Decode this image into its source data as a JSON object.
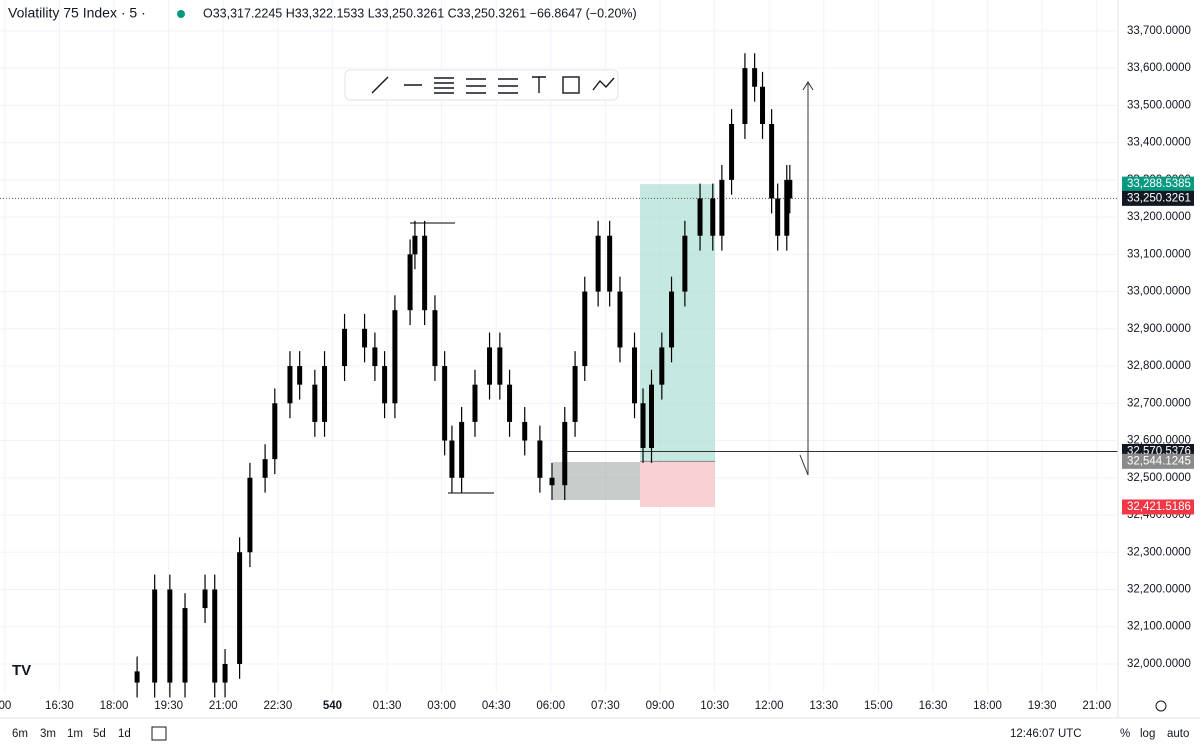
{
  "chart_data": {
    "type": "candlestick",
    "title": "Volatility 75 Index · 5 ·",
    "ohlc_legend": "O33,317.2245 H33,322.1533 L33,250.3261 C33,250.3261 −66.8647 (−0.20%)",
    "color": "#000000",
    "grid": true,
    "x": [
      218,
      247,
      272,
      297,
      330,
      346,
      363,
      387,
      404,
      429,
      445,
      470,
      486,
      511,
      527,
      560,
      593,
      610,
      626,
      643,
      668,
      676,
      692,
      709,
      725,
      737,
      753,
      775,
      799,
      816,
      832,
      857,
      882,
      902,
      923,
      940,
      956,
      978,
      997,
      1014,
      1038,
      1052,
      1066,
      1083,
      1099,
      1121,
      1146,
      1167,
      1182,
      1198,
      1220,
      1236,
      1249,
      1264,
      1274,
      1289,
      1294
    ],
    "open": [
      31980,
      31950,
      32200,
      31950,
      32150,
      32200,
      31950,
      32000,
      32300,
      32500,
      32550,
      32700,
      32800,
      32750,
      32650,
      32800,
      32900,
      32850,
      32800,
      32700,
      32950,
      33100,
      33150,
      32950,
      32800,
      32600,
      32500,
      32650,
      32750,
      32850,
      32750,
      32650,
      32600,
      32500,
      32480,
      32650,
      32800,
      33000,
      33150,
      33000,
      32850,
      32700,
      32580,
      32750,
      32850,
      33000,
      33150,
      33250,
      33150,
      33300,
      33450,
      33600,
      33550,
      33450,
      33250,
      33150,
      33300
    ],
    "high": [
      32020,
      32240,
      32240,
      32190,
      32240,
      32240,
      32040,
      32340,
      32540,
      32590,
      32740,
      32840,
      32840,
      32790,
      32840,
      32940,
      32940,
      32890,
      32840,
      32990,
      33140,
      33190,
      33190,
      32990,
      32840,
      32640,
      32690,
      32790,
      32890,
      32890,
      32790,
      32690,
      32640,
      32540,
      32690,
      32840,
      33040,
      33190,
      33190,
      33040,
      32890,
      32740,
      32790,
      32890,
      33040,
      33190,
      33290,
      33290,
      33340,
      33490,
      33640,
      33640,
      33590,
      33490,
      33290,
      33340,
      33340
    ],
    "low": [
      31910,
      31910,
      31910,
      31910,
      32110,
      31910,
      31910,
      31960,
      32260,
      32460,
      32510,
      32660,
      32710,
      32610,
      32610,
      32760,
      32810,
      32760,
      32660,
      32660,
      32910,
      33060,
      32910,
      32760,
      32560,
      32460,
      32460,
      32610,
      32710,
      32710,
      32610,
      32560,
      32460,
      32440,
      32440,
      32610,
      32760,
      32960,
      32960,
      32810,
      32660,
      32540,
      32540,
      32710,
      32810,
      32960,
      33110,
      33110,
      33110,
      33260,
      33410,
      33510,
      33410,
      33210,
      33110,
      33110,
      33210
    ],
    "close": [
      31950,
      32200,
      31950,
      32150,
      32200,
      31950,
      32000,
      32300,
      32500,
      32550,
      32700,
      32800,
      32750,
      32650,
      32800,
      32900,
      32850,
      32800,
      32700,
      32950,
      33100,
      33150,
      32950,
      32800,
      32600,
      32500,
      32650,
      32750,
      32850,
      32750,
      32650,
      32600,
      32500,
      32480,
      32650,
      32800,
      33000,
      33150,
      33000,
      32850,
      32700,
      32580,
      32750,
      32850,
      33000,
      33150,
      33250,
      33150,
      33300,
      33450,
      33600,
      33550,
      33450,
      33250,
      33150,
      33300,
      33250
    ],
    "xlim": [
      -8,
      1835
    ],
    "xticks": [
      {
        "value": 0,
        "label": "00"
      },
      {
        "value": 90,
        "label": "16:30"
      },
      {
        "value": 180,
        "label": "18:00"
      },
      {
        "value": 270,
        "label": "19:30"
      },
      {
        "value": 360,
        "label": "21:00"
      },
      {
        "value": 450,
        "label": "22:30"
      },
      540,
      {
        "value": 630,
        "label": "01:30"
      },
      {
        "value": 720,
        "label": "03:00"
      },
      {
        "value": 810,
        "label": "04:30"
      },
      {
        "value": 900,
        "label": "06:00"
      },
      {
        "value": 990,
        "label": "07:30"
      },
      {
        "value": 1080,
        "label": "09:00"
      },
      {
        "value": 1170,
        "label": "10:30"
      },
      {
        "value": 1260,
        "label": "12:00"
      },
      {
        "value": 1350,
        "label": "13:30"
      },
      {
        "value": 1440,
        "label": "15:00"
      },
      {
        "value": 1530,
        "label": "16:30"
      },
      {
        "value": 1620,
        "label": "18:00"
      },
      {
        "value": 1710,
        "label": "19:30"
      },
      {
        "value": 1800,
        "label": "21:00"
      }
    ],
    "ylim": [
      31922,
      33783
    ],
    "yticks": [
      {
        "value": 32000,
        "label": "32,000.0000"
      },
      {
        "value": 32100,
        "label": "32,100.0000"
      },
      {
        "value": 32200,
        "label": "32,200.0000"
      },
      {
        "value": 32300,
        "label": "32,300.0000"
      },
      {
        "value": 32400,
        "label": "32,400.0000"
      },
      {
        "value": 32500,
        "label": "32,500.0000"
      },
      {
        "value": 32600,
        "label": "32,600.0000"
      },
      {
        "value": 32700,
        "label": "32,700.0000"
      },
      {
        "value": 32800,
        "label": "32,800.0000"
      },
      {
        "value": 32900,
        "label": "32,900.0000"
      },
      {
        "value": 33000,
        "label": "33,000.0000"
      },
      {
        "value": 33100,
        "label": "33,100.0000"
      },
      {
        "value": 33200,
        "label": "33,200.0000"
      },
      {
        "value": 33300,
        "label": "33,300.0000"
      },
      {
        "value": 33400,
        "label": "33,400.0000"
      },
      {
        "value": 33500,
        "label": "33,500.0000"
      },
      {
        "value": 33600,
        "label": "33,600.0000"
      },
      {
        "value": 33700,
        "label": "33,700.0000"
      }
    ],
    "price_labels": [
      {
        "value": 33288.5385,
        "label": "33,288.5385",
        "color": "#089981"
      },
      {
        "value": 33250.3261,
        "label": "33,250.3261",
        "color": "#131722"
      },
      {
        "value": 32570.5376,
        "label": "32,570.5376",
        "color": "#131722"
      },
      {
        "value": 32544.1245,
        "label": "32,544.1245",
        "color": "#8a8a8a"
      },
      {
        "value": 32421.5186,
        "label": "32,421.5186",
        "color": "#f23645"
      }
    ]
  },
  "ui": {
    "ranges": [
      "6m",
      "3m",
      "1m",
      "5d",
      "1d"
    ],
    "clock": "12:46:07 UTC",
    "percent": "%",
    "log": "log",
    "auto": "auto"
  }
}
